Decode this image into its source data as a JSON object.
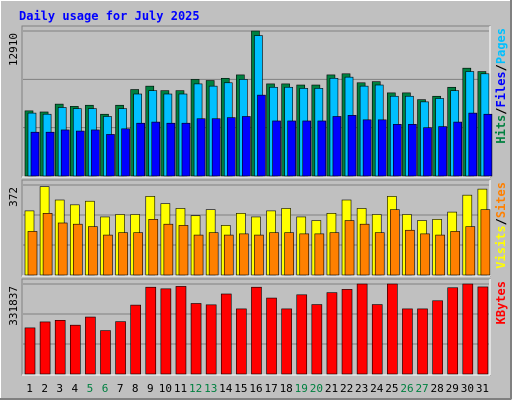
{
  "chart_data": {
    "type": "bar",
    "title": "Daily usage for July 2025",
    "colors": {
      "background": "#C0C0C0",
      "title": "#0000FF",
      "hits": "#008040",
      "files": "#00C0FF",
      "pages": "#0000FF",
      "visits": "#FFFF00",
      "sites": "#FF8000",
      "kbytes": "#FF0000",
      "weekend_label": "#008040",
      "weekday_label": "#000000"
    },
    "categories": [
      "1",
      "2",
      "3",
      "4",
      "5",
      "6",
      "7",
      "8",
      "9",
      "10",
      "11",
      "12",
      "13",
      "14",
      "15",
      "16",
      "17",
      "18",
      "19",
      "20",
      "21",
      "22",
      "23",
      "24",
      "25",
      "26",
      "27",
      "28",
      "29",
      "30",
      "31"
    ],
    "weekend_days": [
      "5",
      "6",
      "12",
      "13",
      "19",
      "20",
      "26",
      "27"
    ],
    "panels": [
      {
        "id": "traffic",
        "max_label": "12910",
        "ylim": [
          0,
          12910
        ],
        "legend": [
          {
            "label": "Hits",
            "color": "#008040"
          },
          {
            "label": "Files",
            "color": "#0000FF"
          },
          {
            "label": "Pages",
            "color": "#00C0FF"
          }
        ],
        "series": [
          {
            "name": "Hits",
            "values": [
              5800,
              5700,
              6400,
              6200,
              6300,
              5500,
              6300,
              7700,
              8000,
              7600,
              7600,
              8600,
              8500,
              8700,
              9000,
              12910,
              8200,
              8200,
              8100,
              8100,
              9000,
              9100,
              8300,
              8400,
              7400,
              7400,
              6800,
              7100,
              7900,
              9600,
              9300
            ]
          },
          {
            "name": "Files",
            "values": [
              5600,
              5500,
              6100,
              6000,
              6000,
              5300,
              6000,
              7300,
              7600,
              7300,
              7300,
              8200,
              8000,
              8300,
              8600,
              12500,
              7900,
              7900,
              7800,
              7800,
              8700,
              8800,
              8000,
              8100,
              7100,
              7100,
              6600,
              6900,
              7600,
              9300,
              9100
            ]
          },
          {
            "name": "Pages",
            "values": [
              3900,
              3900,
              4100,
              4000,
              4100,
              3700,
              4200,
              4700,
              4800,
              4700,
              4700,
              5100,
              5100,
              5200,
              5300,
              7200,
              4900,
              4900,
              4900,
              4900,
              5300,
              5400,
              5000,
              5000,
              4600,
              4600,
              4300,
              4400,
              4800,
              5600,
              5500
            ]
          }
        ]
      },
      {
        "id": "visitors",
        "max_label": "372",
        "ylim": [
          0,
          372
        ],
        "legend": [
          {
            "label": "Visits",
            "color": "#FFFF00"
          },
          {
            "label": "Sites",
            "color": "#FF8000"
          }
        ],
        "series": [
          {
            "name": "Visits",
            "values": [
              265,
              365,
              310,
              290,
              305,
              240,
              250,
              250,
              325,
              295,
              275,
              245,
              270,
              205,
              255,
              240,
              265,
              275,
              240,
              225,
              255,
              310,
              275,
              250,
              325,
              250,
              225,
              230,
              260,
              330,
              355
            ]
          },
          {
            "name": "Sites",
            "values": [
              180,
              255,
              215,
              210,
              200,
              165,
              175,
              175,
              230,
              210,
              205,
              165,
              175,
              165,
              170,
              165,
              175,
              175,
              170,
              170,
              175,
              225,
              210,
              175,
              270,
              185,
              170,
              165,
              180,
              200,
              270
            ]
          }
        ]
      },
      {
        "id": "volume",
        "max_label": "331837",
        "ylim": [
          0,
          331837
        ],
        "legend": [
          {
            "label": "KBytes",
            "color": "#FF0000"
          }
        ],
        "series": [
          {
            "name": "KBytes",
            "values": [
              170000,
              192000,
              198000,
              180000,
              210000,
              160000,
              193000,
              254000,
              320000,
              314000,
              323000,
              260000,
              255000,
              295000,
              240000,
              320000,
              280000,
              240000,
              292000,
              256000,
              300000,
              312000,
              331837,
              256000,
              331837,
              240000,
              240000,
              270000,
              318000,
              331837,
              321000
            ]
          }
        ]
      }
    ]
  }
}
